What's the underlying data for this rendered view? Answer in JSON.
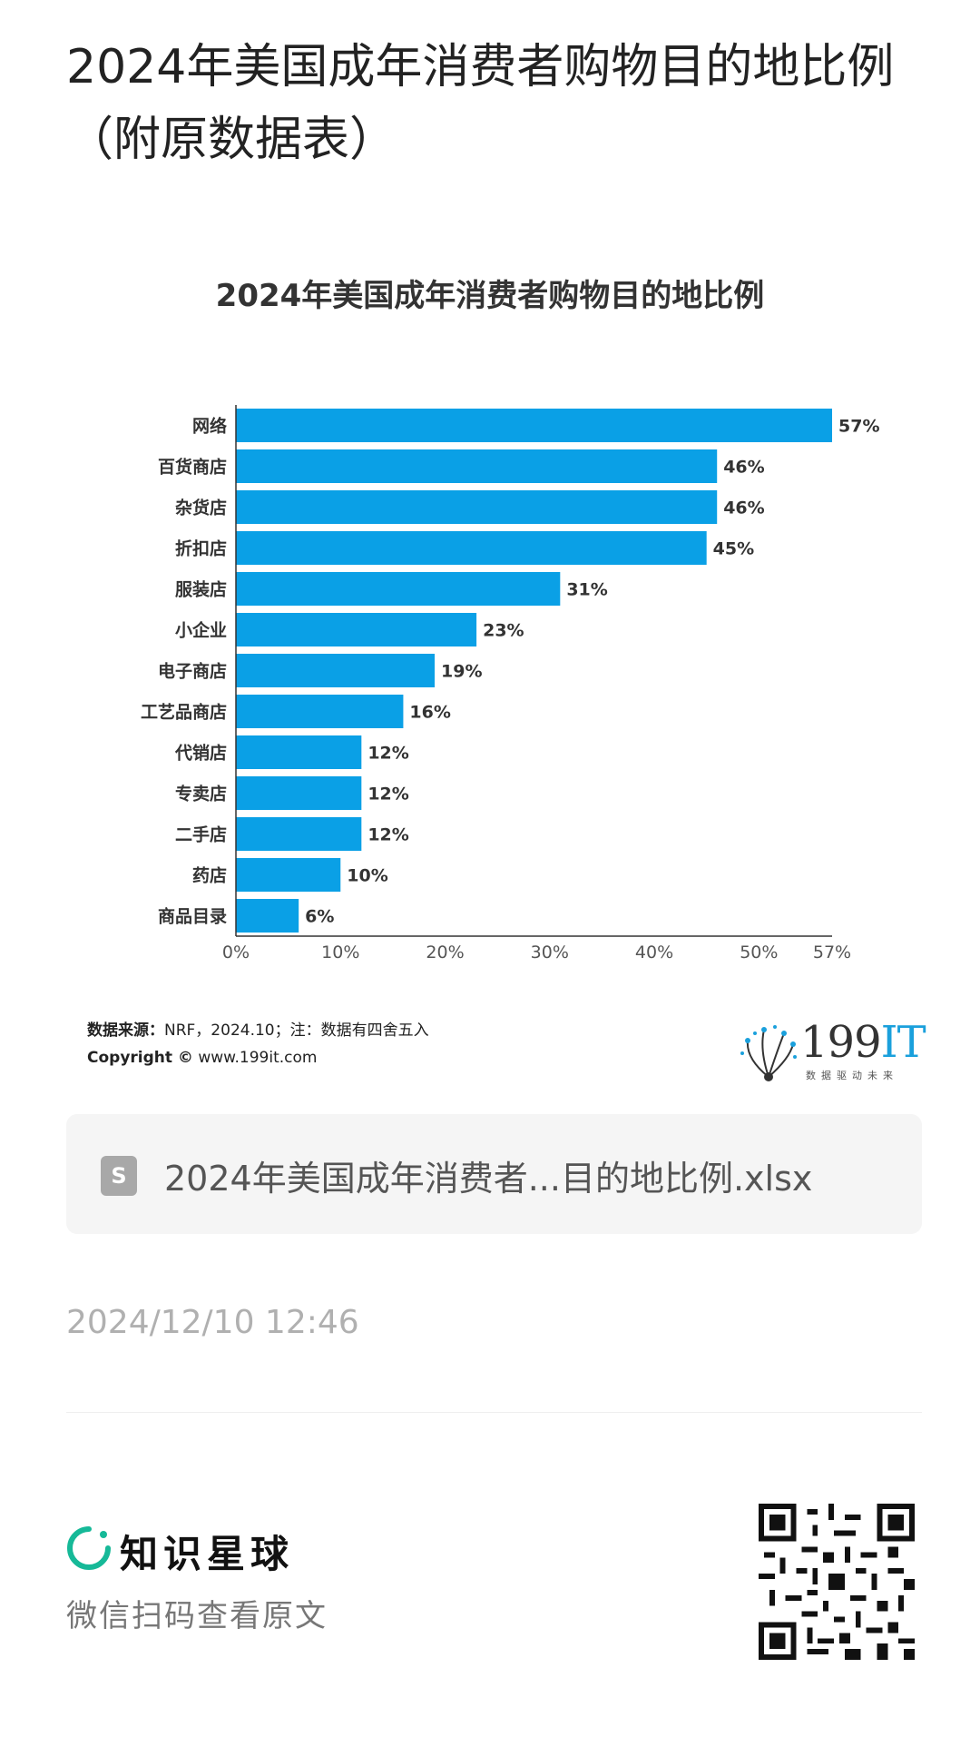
{
  "post": {
    "title": "2024年美国成年消费者购物目的地比例（附原数据表）"
  },
  "chart_data": {
    "type": "bar",
    "orientation": "horizontal",
    "title": "2024年美国成年消费者购物目的地比例",
    "categories": [
      "网络",
      "百货商店",
      "杂货店",
      "折扣店",
      "服装店",
      "小企业",
      "电子商店",
      "工艺品商店",
      "代销店",
      "专卖店",
      "二手店",
      "药店",
      "商品目录"
    ],
    "values": [
      57,
      46,
      46,
      45,
      31,
      23,
      19,
      16,
      12,
      12,
      12,
      10,
      6
    ],
    "value_labels": [
      "57%",
      "46%",
      "46%",
      "45%",
      "31%",
      "23%",
      "19%",
      "16%",
      "12%",
      "12%",
      "12%",
      "10%",
      "6%"
    ],
    "xlim": [
      0,
      57
    ],
    "x_ticks": [
      0,
      10,
      20,
      30,
      40,
      50,
      57
    ],
    "x_tick_labels": [
      "0%",
      "10%",
      "20%",
      "30%",
      "40%",
      "50%",
      "57%"
    ],
    "xlabel": "",
    "ylabel": "",
    "bar_color": "#0aa0e6",
    "grid": false,
    "legend": "none"
  },
  "source": {
    "label": "数据来源：",
    "text": "NRF，2024.10；注：数据有四舍五入",
    "copyright_label": "Copyright ©",
    "copyright_text": "www.199it.com"
  },
  "brand": {
    "number": "199",
    "it": "IT",
    "slogan": "数据驱动未来",
    "accent_color": "#1aa0dc"
  },
  "attachment": {
    "icon": "spreadsheet-file-icon",
    "icon_letter": "S",
    "file_name": "2024年美国成年消费者...目的地比例.xlsx"
  },
  "timestamp": "2024/12/10 12:46",
  "footer": {
    "app_name": "知识星球",
    "logo_icon": "zsxq-ring-icon",
    "logo_color": "#16b998",
    "scan_hint": "微信扫码查看原文",
    "qr_icon": "qr-code-icon"
  }
}
